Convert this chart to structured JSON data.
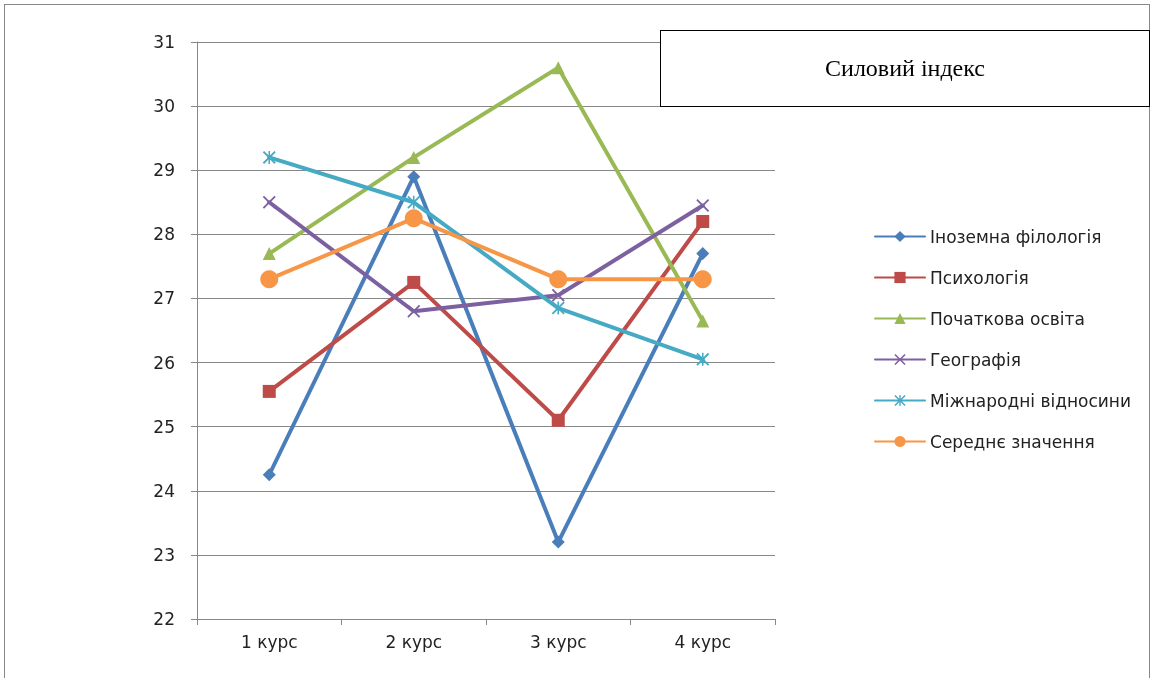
{
  "chart_data": {
    "type": "line",
    "title": "Силовий індекс",
    "categories": [
      "1 курс",
      "2 курс",
      "3 курс",
      "4 курс"
    ],
    "series": [
      {
        "name": "Іноземна філологія",
        "color": "#4a7ebb",
        "marker": "diamond",
        "values": [
          24.25,
          28.9,
          23.2,
          27.7
        ]
      },
      {
        "name": "Психологія",
        "color": "#be4b48",
        "marker": "square",
        "values": [
          25.55,
          27.25,
          25.1,
          28.2
        ]
      },
      {
        "name": "Початкова освіта",
        "color": "#98b954",
        "marker": "triangle",
        "values": [
          27.7,
          29.2,
          30.6,
          26.65
        ]
      },
      {
        "name": "Географія",
        "color": "#7d60a0",
        "marker": "cross",
        "values": [
          28.5,
          26.8,
          27.05,
          28.45
        ]
      },
      {
        "name": "Міжнародні відносини",
        "color": "#46aac5",
        "marker": "star",
        "values": [
          29.2,
          28.5,
          26.85,
          26.05
        ]
      },
      {
        "name": "Середнє значення",
        "color": "#f79646",
        "marker": "circle",
        "values": [
          27.3,
          28.25,
          27.3,
          27.3
        ]
      }
    ],
    "ylim": [
      22,
      31
    ],
    "yticks": [
      22,
      23,
      24,
      25,
      26,
      27,
      28,
      29,
      30,
      31
    ],
    "grid": "y",
    "legend": "right",
    "line_style": "solid"
  }
}
